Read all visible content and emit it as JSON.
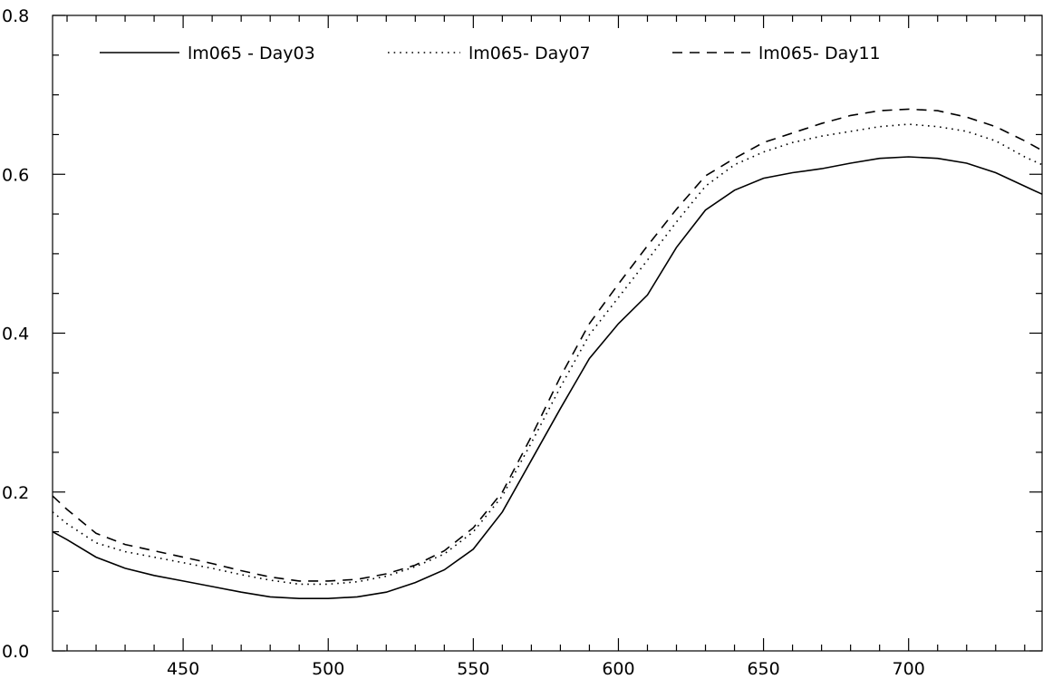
{
  "chart_data": {
    "type": "line",
    "title": "",
    "xlabel": "",
    "ylabel": "",
    "xlim": [
      405,
      746
    ],
    "ylim": [
      0.0,
      0.8
    ],
    "x_ticks": [
      450,
      500,
      550,
      600,
      650,
      700
    ],
    "x_tick_labels": [
      "450",
      "500",
      "550",
      "600",
      "650",
      "700"
    ],
    "y_ticks": [
      0.0,
      0.2,
      0.4,
      0.6,
      0.8
    ],
    "y_tick_labels": [
      "0.0",
      "0.2",
      "0.4",
      "0.6",
      "0.8"
    ],
    "grid": false,
    "legend_position": "top",
    "x": [
      405,
      410,
      420,
      430,
      440,
      450,
      460,
      470,
      480,
      490,
      500,
      510,
      520,
      530,
      540,
      550,
      560,
      570,
      580,
      590,
      600,
      610,
      620,
      630,
      640,
      650,
      660,
      670,
      680,
      690,
      700,
      710,
      720,
      730,
      740,
      746
    ],
    "series": [
      {
        "name": "lm065 - Day03",
        "line_style": "solid",
        "values": [
          0.15,
          0.14,
          0.118,
          0.104,
          0.095,
          0.088,
          0.081,
          0.074,
          0.068,
          0.066,
          0.066,
          0.068,
          0.074,
          0.086,
          0.102,
          0.128,
          0.175,
          0.24,
          0.305,
          0.368,
          0.412,
          0.448,
          0.508,
          0.555,
          0.58,
          0.595,
          0.602,
          0.607,
          0.614,
          0.62,
          0.622,
          0.62,
          0.614,
          0.602,
          0.585,
          0.575
        ]
      },
      {
        "name": "lm065- Day07",
        "line_style": "dotted",
        "values": [
          0.175,
          0.16,
          0.136,
          0.125,
          0.118,
          0.111,
          0.104,
          0.096,
          0.089,
          0.084,
          0.084,
          0.087,
          0.094,
          0.106,
          0.122,
          0.15,
          0.195,
          0.262,
          0.332,
          0.398,
          0.445,
          0.492,
          0.54,
          0.585,
          0.612,
          0.628,
          0.64,
          0.648,
          0.654,
          0.66,
          0.663,
          0.66,
          0.654,
          0.642,
          0.622,
          0.612
        ]
      },
      {
        "name": "lm065- Day11",
        "line_style": "dashed",
        "values": [
          0.195,
          0.178,
          0.148,
          0.134,
          0.126,
          0.118,
          0.11,
          0.101,
          0.093,
          0.088,
          0.088,
          0.09,
          0.097,
          0.108,
          0.126,
          0.155,
          0.2,
          0.27,
          0.345,
          0.412,
          0.462,
          0.51,
          0.556,
          0.598,
          0.62,
          0.64,
          0.652,
          0.664,
          0.674,
          0.68,
          0.682,
          0.68,
          0.672,
          0.66,
          0.642,
          0.63
        ]
      }
    ]
  }
}
